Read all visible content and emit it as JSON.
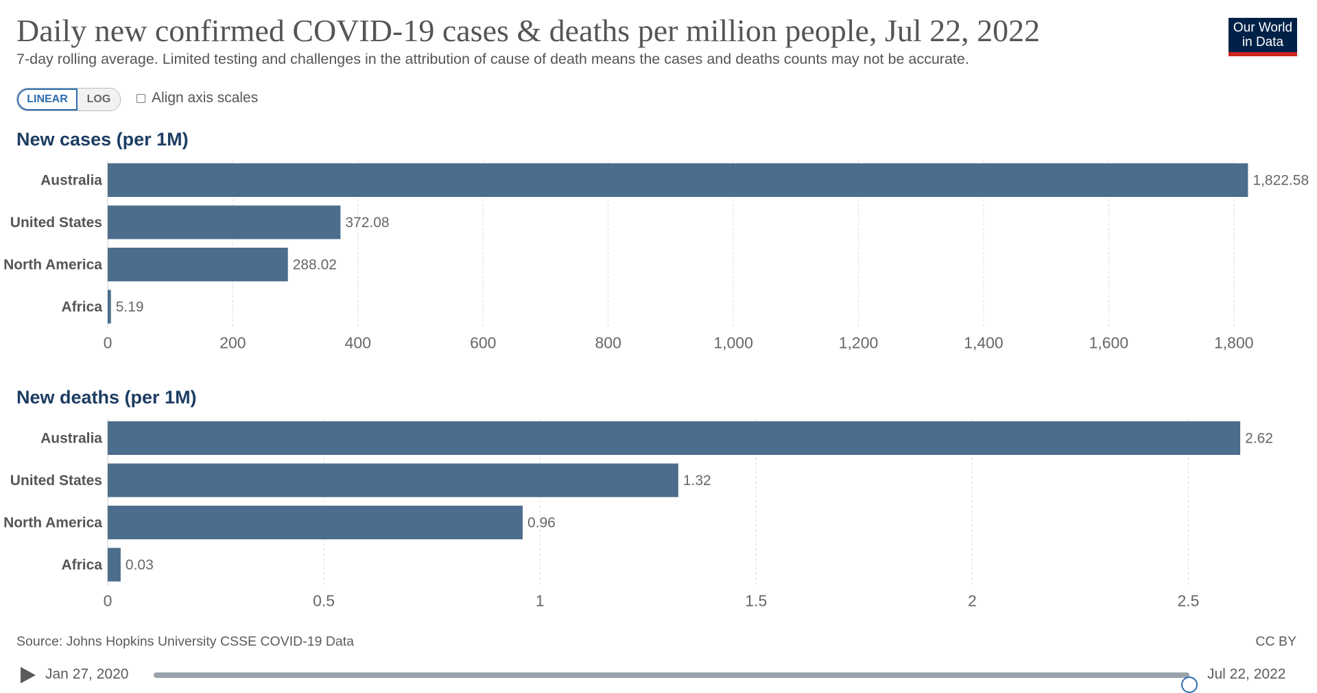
{
  "header": {
    "title": "Daily new confirmed COVID-19 cases & deaths per million people, Jul 22, 2022",
    "subtitle": "7-day rolling average. Limited testing and challenges in the attribution of cause of death means the cases and deaths counts may not be accurate.",
    "logo_line1": "Our World",
    "logo_line2": "in Data"
  },
  "controls": {
    "linear_label": "LINEAR",
    "log_label": "LOG",
    "align_label": "Align axis scales",
    "selected_scale": "linear",
    "align_checked": false
  },
  "chart_data": [
    {
      "type": "bar",
      "orientation": "horizontal",
      "title": "New cases (per 1M)",
      "categories": [
        "Australia",
        "United States",
        "North America",
        "Africa"
      ],
      "values": [
        1822.58,
        372.08,
        288.02,
        5.19
      ],
      "value_labels": [
        "1,822.58",
        "372.08",
        "288.02",
        "5.19"
      ],
      "xlim": [
        0,
        1900
      ],
      "ticks": [
        0,
        200,
        400,
        600,
        800,
        1000,
        1200,
        1400,
        1600,
        1800
      ],
      "tick_labels": [
        "0",
        "200",
        "400",
        "600",
        "800",
        "1,000",
        "1,200",
        "1,400",
        "1,600",
        "1,800"
      ],
      "grid": true,
      "bar_color": "#4c6d8c"
    },
    {
      "type": "bar",
      "orientation": "horizontal",
      "title": "New deaths (per 1M)",
      "categories": [
        "Australia",
        "United States",
        "North America",
        "Africa"
      ],
      "values": [
        2.62,
        1.32,
        0.96,
        0.03
      ],
      "value_labels": [
        "2.62",
        "1.32",
        "0.96",
        "0.03"
      ],
      "xlim": [
        0,
        2.75
      ],
      "ticks": [
        0,
        0.5,
        1,
        1.5,
        2,
        2.5
      ],
      "tick_labels": [
        "0",
        "0.5",
        "1",
        "1.5",
        "2",
        "2.5"
      ],
      "grid": true,
      "bar_color": "#4c6d8c"
    }
  ],
  "footer": {
    "source": "Source: Johns Hopkins University CSSE COVID-19 Data",
    "license": "CC BY"
  },
  "timeline": {
    "start_label": "Jan 27, 2020",
    "end_label": "Jul 22, 2022",
    "position_fraction": 1.0
  }
}
